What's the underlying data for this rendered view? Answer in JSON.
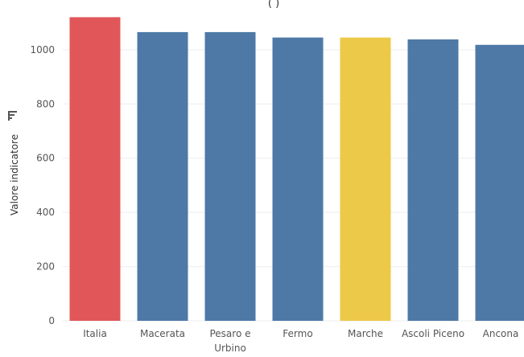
{
  "chart_data": {
    "type": "bar",
    "title": "(                                  )",
    "xlabel": "",
    "ylabel": "Valore indicatore",
    "ylim": [
      0,
      1130
    ],
    "yticks": [
      0,
      200,
      400,
      600,
      800,
      1000
    ],
    "grid": true,
    "legend": "none",
    "categories": [
      "Italia",
      "Macerata",
      "Pesaro e Urbino",
      "Fermo",
      "Marche",
      "Ascoli Piceno",
      "Ancona"
    ],
    "category_lines": [
      [
        "Italia"
      ],
      [
        "Macerata"
      ],
      [
        "Pesaro e",
        "Urbino"
      ],
      [
        "Fermo"
      ],
      [
        "Marche"
      ],
      [
        "Ascoli Piceno"
      ],
      [
        "Ancona"
      ]
    ],
    "values": [
      1120,
      1065,
      1065,
      1045,
      1045,
      1038,
      1018
    ],
    "colors": [
      "#e15759",
      "#4e79a7",
      "#4e79a7",
      "#4e79a7",
      "#edc949",
      "#4e79a7",
      "#4e79a7"
    ],
    "axis_icon": "sort-icon"
  }
}
